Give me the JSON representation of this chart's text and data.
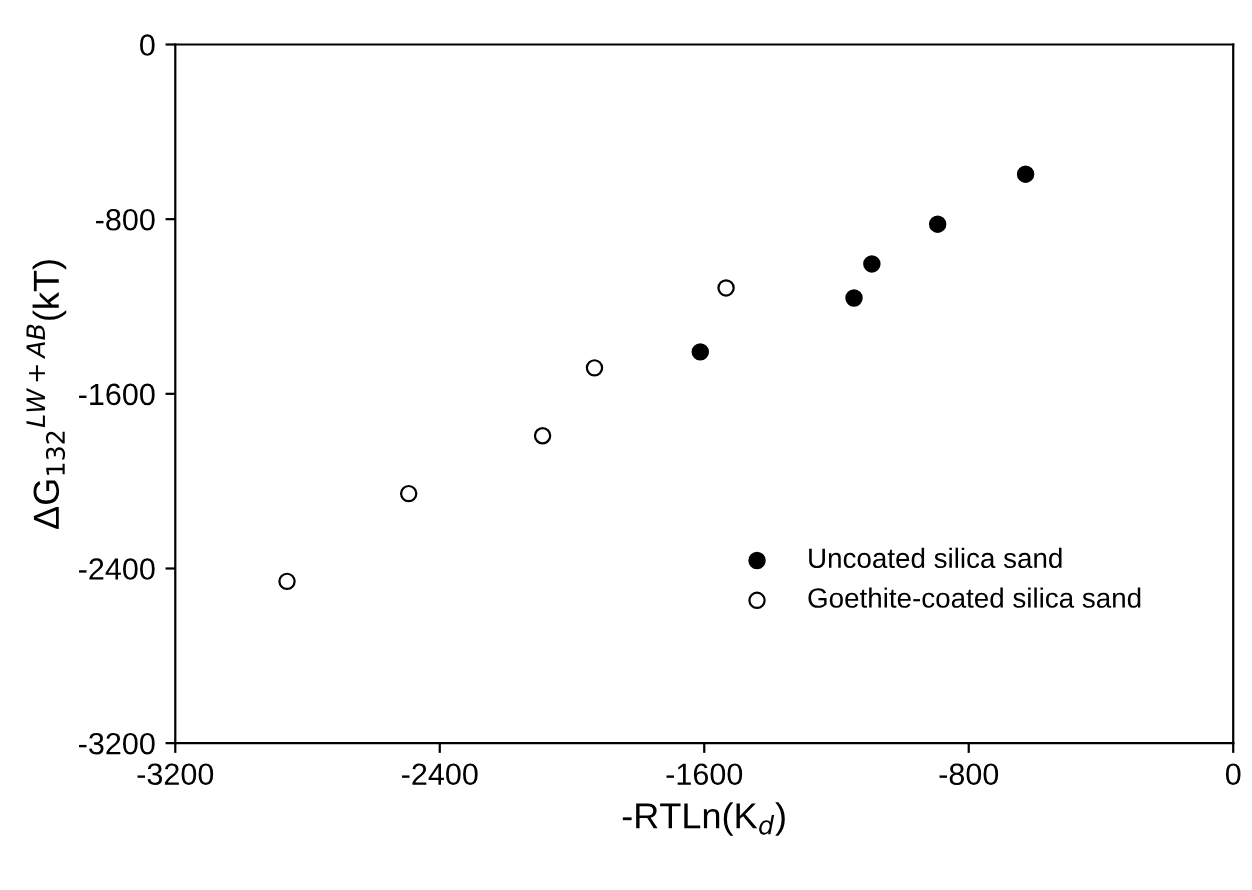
{
  "chart_data": {
    "type": "scatter",
    "xlabel": "-RTLn(K$_{d}$)",
    "ylabel": "ΔG$_{132}$$^{LW+AB}$(kT)",
    "series": [
      {
        "name": "Uncoated silica sand",
        "color": "#000000",
        "x": [
          -1612,
          -1147,
          -1093,
          -894,
          -628
        ],
        "values": [
          -1408,
          -1161,
          -1005,
          -823,
          -594
        ]
      },
      {
        "name": "Goethite-coated silica sand",
        "color": "#ffffff",
        "x": [
          -2862,
          -2494,
          -2089,
          -1932,
          -1534
        ],
        "values": [
          -2459,
          -2057,
          -1792,
          -1481,
          -1115
        ]
      }
    ],
    "xlim": [
      -3200,
      0
    ],
    "xticks": [
      -3200,
      -2400,
      -1600,
      -800,
      0
    ],
    "ylim": [
      -3200,
      0
    ],
    "yticks": [
      -3200,
      -2400,
      -1600,
      -800,
      0
    ],
    "marker": "circle",
    "grid": false,
    "legend": "bottom right"
  }
}
